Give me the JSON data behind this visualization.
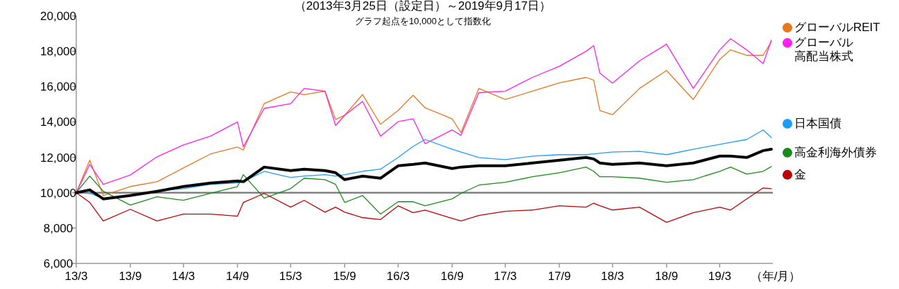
{
  "chart_data": {
    "type": "line",
    "title": "（2013年3月25日（設定日）～2019年9月17日）",
    "subtitle": "グラフ起点を10,000として指数化",
    "xlabel": "（年/月）",
    "x": [
      "2013-03-25",
      "2013-05-10",
      "2013-06-25",
      "2013-09-25",
      "2013-12-25",
      "2014-03-25",
      "2014-06-25",
      "2014-09-25",
      "2014-10-15",
      "2014-12-25",
      "2015-03-25",
      "2015-05-10",
      "2015-07-20",
      "2015-08-25",
      "2015-09-25",
      "2015-11-25",
      "2016-01-25",
      "2016-03-25",
      "2016-05-15",
      "2016-06-25",
      "2016-09-25",
      "2016-10-25",
      "2016-12-25",
      "2017-03-25",
      "2017-06-25",
      "2017-09-25",
      "2017-12-25",
      "2018-01-20",
      "2018-02-10",
      "2018-03-25",
      "2018-06-25",
      "2018-09-25",
      "2018-12-25",
      "2019-03-25",
      "2019-05-01",
      "2019-06-25",
      "2019-08-20",
      "2019-09-17"
    ],
    "series": [
      {
        "name": "グローバルREIT",
        "color": "#e8761e",
        "values": [
          10000,
          11840,
          9840,
          10350,
          10620,
          11400,
          12190,
          12580,
          12420,
          15040,
          15700,
          15550,
          15740,
          14140,
          14380,
          15550,
          13870,
          14650,
          15510,
          14800,
          14180,
          13400,
          15900,
          15270,
          15740,
          16210,
          16520,
          16370,
          14650,
          14410,
          15900,
          16910,
          15270,
          17540,
          18080,
          17770,
          17770,
          18550
        ]
      },
      {
        "name": "グローバル高配当株式",
        "color": "#ff1ff0",
        "values": [
          10000,
          11600,
          10470,
          11000,
          12030,
          12700,
          13200,
          14000,
          12600,
          14770,
          15040,
          15900,
          15740,
          13800,
          14380,
          15160,
          13200,
          14020,
          14180,
          12770,
          13550,
          13240,
          15660,
          15740,
          16520,
          17150,
          18000,
          18320,
          16760,
          16200,
          17460,
          18400,
          15900,
          18080,
          18710,
          18080,
          17300,
          18630
        ]
      },
      {
        "name": "日本国債",
        "color": "#1e9bff",
        "values": [
          10000,
          9960,
          9690,
          9840,
          10080,
          10230,
          10470,
          10550,
          10620,
          11210,
          10860,
          10940,
          11020,
          10940,
          11020,
          11210,
          11330,
          11990,
          12620,
          13010,
          12460,
          12300,
          11990,
          11870,
          12070,
          12150,
          12150,
          12190,
          12230,
          12300,
          12340,
          12150,
          12460,
          12730,
          12850,
          13010,
          13550,
          13120
        ]
      },
      {
        "color": "#000000",
        "values": [
          10000,
          10160,
          9650,
          9840,
          10080,
          10350,
          10550,
          10660,
          10620,
          11450,
          11250,
          11330,
          11250,
          11130,
          10740,
          10940,
          10820,
          11520,
          11600,
          11680,
          11370,
          11450,
          11520,
          11520,
          11680,
          11840,
          11990,
          11910,
          11680,
          11600,
          11680,
          11520,
          11680,
          12070,
          12070,
          11990,
          12380,
          12460
        ]
      },
      {
        "name": "高金利海外債券",
        "color": "#1a8a1a",
        "values": [
          10000,
          10940,
          10080,
          9300,
          9770,
          9570,
          9960,
          10350,
          11020,
          9690,
          10230,
          10820,
          10740,
          10470,
          9450,
          9840,
          8790,
          9490,
          9490,
          9260,
          9650,
          9960,
          10430,
          10590,
          10900,
          11130,
          11450,
          11210,
          10900,
          10900,
          10820,
          10590,
          10740,
          11210,
          11450,
          11050,
          11210,
          11480
        ]
      },
      {
        "name": "金",
        "color": "#c00000",
        "values": [
          10000,
          9450,
          8400,
          9060,
          8400,
          8790,
          8790,
          8670,
          9450,
          9960,
          9180,
          9570,
          8900,
          9180,
          8900,
          8590,
          8480,
          9260,
          8870,
          9020,
          8550,
          8400,
          8710,
          8950,
          9020,
          9260,
          9180,
          9410,
          9260,
          9020,
          9180,
          8320,
          8870,
          9180,
          9020,
          9650,
          10270,
          10230
        ]
      }
    ],
    "xlim": [
      "2013-03-25",
      "2019-09-22"
    ],
    "xticks": [
      {
        "value": "2013-03-25",
        "label": "13/3"
      },
      {
        "value": "2013-09-25",
        "label": "13/9"
      },
      {
        "value": "2014-03-25",
        "label": "14/3"
      },
      {
        "value": "2014-09-25",
        "label": "14/9"
      },
      {
        "value": "2015-03-25",
        "label": "15/3"
      },
      {
        "value": "2015-09-25",
        "label": "15/9"
      },
      {
        "value": "2016-03-25",
        "label": "16/3"
      },
      {
        "value": "2016-09-25",
        "label": "16/9"
      },
      {
        "value": "2017-03-25",
        "label": "17/3"
      },
      {
        "value": "2017-09-25",
        "label": "17/9"
      },
      {
        "value": "2018-03-25",
        "label": "18/3"
      },
      {
        "value": "2018-09-25",
        "label": "18/9"
      },
      {
        "value": "2019-03-25",
        "label": "19/3"
      }
    ],
    "ylim": [
      6000,
      20000
    ],
    "yticks": [
      {
        "value": 6000,
        "label": "6,000"
      },
      {
        "value": 8000,
        "label": "8,000"
      },
      {
        "value": 10000,
        "label": "10,000"
      },
      {
        "value": 12000,
        "label": "12,000"
      },
      {
        "value": 14000,
        "label": "14,000"
      },
      {
        "value": 16000,
        "label": "16,000"
      },
      {
        "value": 18000,
        "label": "18,000"
      },
      {
        "value": 20000,
        "label": "20,000"
      }
    ],
    "ref_lines": [
      {
        "axis": "y",
        "value": 10000,
        "color": "#808080"
      }
    ],
    "grid": false,
    "legend": "right",
    "marker": "none",
    "line_style": "solid"
  }
}
